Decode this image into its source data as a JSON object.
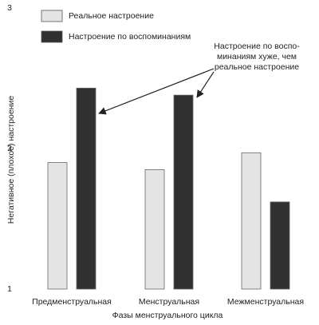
{
  "chart_data": {
    "type": "bar",
    "y_label": "Негативное (плохое) настроение",
    "x_label": "Фазы менструального цикла",
    "categories": [
      "Предменструальная",
      "Менструальная",
      "Межменструальная"
    ],
    "series": [
      {
        "name": "Реальное настроение",
        "color": "#e4e4e4",
        "values": [
          1.9,
          1.85,
          1.97
        ]
      },
      {
        "name": "Настроение по воспоминаниям",
        "color": "#303030",
        "values": [
          2.43,
          2.38,
          1.62
        ]
      }
    ],
    "annotation": [
      "Настроение по воспо-",
      "минаниям хуже, чем",
      "реальное настроение"
    ],
    "ylim": [
      1,
      3
    ],
    "yticks": [
      1,
      2,
      3
    ],
    "grid": false
  }
}
